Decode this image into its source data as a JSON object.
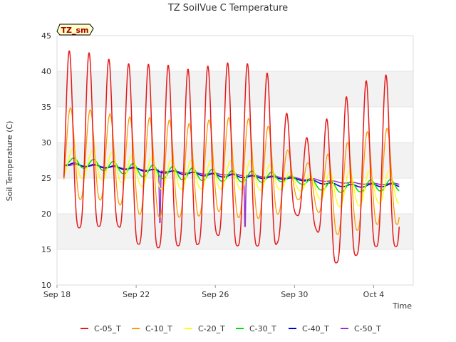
{
  "chart_data": {
    "type": "line",
    "title": "TZ SoilVue C Temperature",
    "xlabel": "Time",
    "ylabel": "Soil Temperature (C)",
    "ylim": [
      10,
      45
    ],
    "yticks": [
      10,
      15,
      20,
      25,
      30,
      35,
      40,
      45
    ],
    "xticks": [
      {
        "label": "Sep 18",
        "day": 0
      },
      {
        "label": "Sep 22",
        "day": 4
      },
      {
        "label": "Sep 26",
        "day": 8
      },
      {
        "label": "Sep 30",
        "day": 12
      },
      {
        "label": "Oct 4",
        "day": 16
      }
    ],
    "xlim_days": [
      0,
      18
    ],
    "x_start_day": 0.35,
    "x_end_day": 17.3,
    "site_badge": "TZ_sm",
    "grid": "horizontal bands",
    "legend_position": "bottom",
    "series": [
      {
        "name": "C-05_T",
        "color": "#e41a1c",
        "width": 1.5,
        "peaks": [
          43,
          42.8,
          42.5,
          41.2,
          41,
          41,
          40.8,
          40,
          41.2,
          41.2,
          41,
          39,
          31,
          30.5,
          35,
          37.3,
          39.5
        ],
        "troughs": [
          19,
          18,
          18.2,
          18.5,
          15.8,
          15.2,
          15.5,
          15.5,
          17.2,
          15.5,
          15.5,
          15.3,
          20,
          18.3,
          13,
          14,
          15.4
        ]
      },
      {
        "name": "C-10_T",
        "color": "#ff9900",
        "width": 1.3,
        "peaks": [
          35,
          34.8,
          34.5,
          33.8,
          33.5,
          33.5,
          33,
          32.5,
          33.5,
          33.5,
          33.3,
          31.8,
          27.5,
          27,
          29,
          30.5,
          32
        ],
        "troughs": [
          22.5,
          22,
          22,
          21.5,
          20,
          19.5,
          19.5,
          19.5,
          20.5,
          19.5,
          19.3,
          19.5,
          22.2,
          21,
          17,
          17.5,
          18.5
        ]
      },
      {
        "name": "C-20_T",
        "color": "#ffff00",
        "width": 1.3,
        "peaks": [
          29.2,
          29,
          28.8,
          28.5,
          28,
          27.8,
          27.5,
          27.5,
          27.5,
          27.5,
          27.5,
          26.8,
          25.5,
          25.5,
          26,
          26,
          26
        ],
        "troughs": [
          25.5,
          25,
          24.8,
          24.5,
          24,
          23.5,
          23.5,
          23.5,
          23.5,
          23.5,
          23.3,
          23.3,
          23.5,
          22.5,
          21,
          21,
          21.5
        ]
      },
      {
        "name": "C-30_T",
        "color": "#00dd00",
        "width": 1.5,
        "peaks": [
          28,
          27.8,
          27.6,
          27.3,
          27,
          26.8,
          26.6,
          26.4,
          26.2,
          26,
          26,
          25.8,
          25.2,
          24.8,
          24.5,
          24.5,
          24.8
        ],
        "troughs": [
          27,
          26.5,
          26.2,
          25.8,
          25.3,
          25,
          24.8,
          24.7,
          24.6,
          24.5,
          24.4,
          24.5,
          24.5,
          23.5,
          23,
          23,
          23.2
        ]
      },
      {
        "name": "C-40_T",
        "color": "#0000cc",
        "width": 1.6,
        "peaks": [
          27.3,
          27.1,
          26.9,
          26.7,
          26.5,
          26.2,
          26,
          25.8,
          25.6,
          25.5,
          25.3,
          25.2,
          25,
          24.7,
          24.3,
          24.1,
          24.2
        ],
        "troughs": [
          26.9,
          26.7,
          26.5,
          26.3,
          26.1,
          25.8,
          25.6,
          25.4,
          25.2,
          25.1,
          25,
          24.9,
          24.8,
          24.4,
          23.9,
          23.7,
          23.8
        ]
      },
      {
        "name": "C-50_T",
        "color": "#9933cc",
        "width": 1.6,
        "peaks": [
          27,
          26.9,
          26.8,
          26.6,
          26.4,
          26.2,
          26,
          25.8,
          25.7,
          25.6,
          25.4,
          25.3,
          25.1,
          24.9,
          24.6,
          24.4,
          24.3
        ],
        "troughs": [
          26.8,
          26.7,
          26.6,
          26.4,
          26.2,
          26,
          25.8,
          25.6,
          25.5,
          25.4,
          25.2,
          25.1,
          24.9,
          24.7,
          24.4,
          24.2,
          24.1
        ],
        "dips": [
          {
            "day": 5.2,
            "value": 17.3
          },
          {
            "day": 9.5,
            "value": 16.8
          }
        ]
      }
    ]
  }
}
